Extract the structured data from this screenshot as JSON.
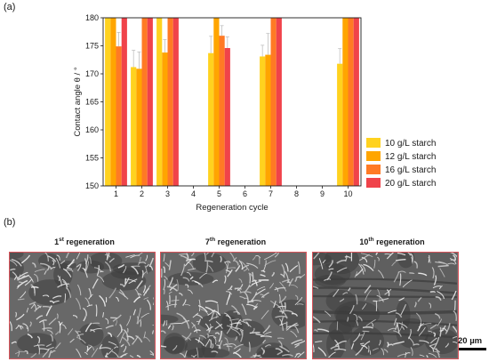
{
  "panel_a": {
    "label": "(a)"
  },
  "panel_b": {
    "label": "(b)"
  },
  "chart_data": {
    "type": "bar",
    "xlabel": "Regeneration cycle",
    "ylabel": "Contact angle θ / °",
    "categories": [
      "1",
      "2",
      "3",
      "4",
      "5",
      "6",
      "7",
      "8",
      "9",
      "10"
    ],
    "ylim": [
      150,
      180
    ],
    "yticks": [
      150,
      155,
      160,
      165,
      170,
      175,
      180
    ],
    "grid": false,
    "legend_position": "right",
    "series": [
      {
        "name": "10 g/L starch",
        "color": "#ffd21f",
        "values": [
          180,
          171.2,
          180,
          null,
          173.7,
          null,
          173.1,
          null,
          null,
          171.8
        ],
        "errors": [
          0,
          3,
          0,
          null,
          3,
          null,
          2,
          null,
          null,
          2.7
        ]
      },
      {
        "name": "12 g/L starch",
        "color": "#ffa500",
        "values": [
          180,
          170.9,
          173.8,
          null,
          180,
          null,
          173.4,
          null,
          null,
          180
        ],
        "errors": [
          0,
          3,
          2.3,
          null,
          0,
          null,
          3.8,
          null,
          null,
          0
        ]
      },
      {
        "name": "16 g/L starch",
        "color": "#ff7a24",
        "values": [
          174.9,
          180,
          180,
          null,
          176.8,
          null,
          180,
          null,
          null,
          180
        ],
        "errors": [
          2.5,
          0,
          0,
          null,
          1.8,
          null,
          0,
          null,
          null,
          0
        ]
      },
      {
        "name": "20 g/L starch",
        "color": "#f0434a",
        "values": [
          180,
          180,
          180,
          null,
          174.6,
          null,
          180,
          null,
          null,
          180
        ],
        "errors": [
          0,
          0,
          0,
          null,
          2,
          null,
          0,
          null,
          null,
          0
        ]
      }
    ]
  },
  "sem_images": [
    {
      "sup": "st",
      "prefix": "1",
      "suffix": " regeneration"
    },
    {
      "sup": "th",
      "prefix": "7",
      "suffix": " regeneration"
    },
    {
      "sup": "th",
      "prefix": "10",
      "suffix": " regeneration"
    }
  ],
  "scale_bar": {
    "label": "20 µm"
  }
}
